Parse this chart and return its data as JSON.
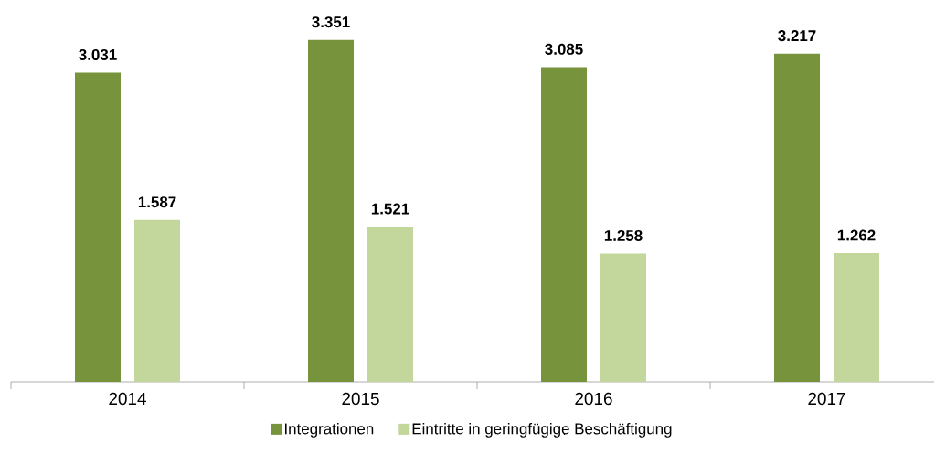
{
  "chart_data": {
    "type": "bar",
    "categories": [
      "2014",
      "2015",
      "2016",
      "2017"
    ],
    "series": [
      {
        "name": "Integrationen",
        "color": "#77933c",
        "values": [
          3031,
          3351,
          3085,
          3217
        ],
        "value_labels": [
          "3.031",
          "3.351",
          "3.085",
          "3.217"
        ]
      },
      {
        "name": "Eintritte in geringfügige Beschäftigung",
        "color": "#c3d69b",
        "values": [
          1587,
          1521,
          1258,
          1262
        ],
        "value_labels": [
          "1.587",
          "1.521",
          "1.258",
          "1.262"
        ]
      }
    ],
    "legend": "bottom"
  }
}
